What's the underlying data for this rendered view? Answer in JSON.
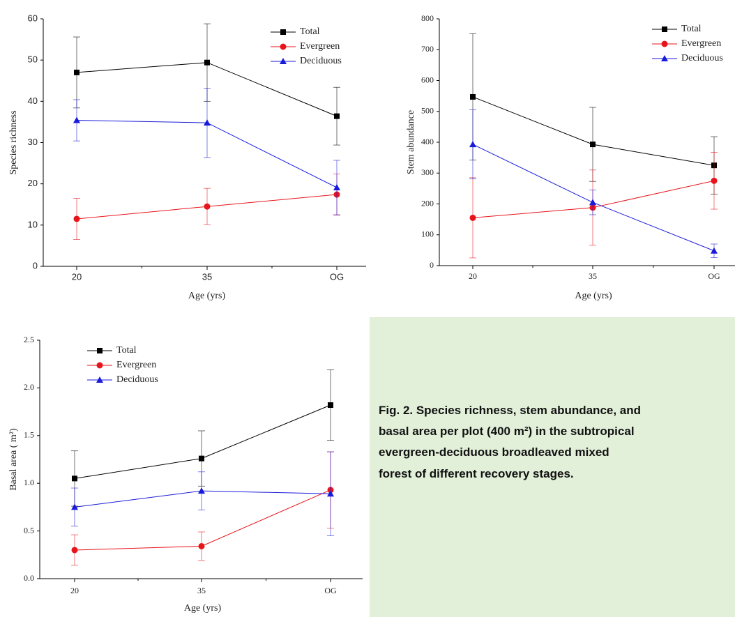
{
  "chart_data": [
    {
      "type": "line",
      "x_label": "Age (yrs)",
      "y_label": "Species richness",
      "categories": [
        "20",
        "35",
        "OG"
      ],
      "ylim": [
        0,
        60
      ],
      "yticks": [
        0,
        10,
        20,
        30,
        40,
        50,
        60
      ],
      "legend": "upper right",
      "series": [
        {
          "name": "Total",
          "color": "#000000",
          "marker": "square",
          "values": [
            47,
            49.4,
            36.4
          ],
          "errors": [
            8.6,
            9.4,
            7
          ]
        },
        {
          "name": "Evergreen",
          "color": "#e8141b",
          "marker": "circle",
          "values": [
            11.5,
            14.5,
            17.4
          ],
          "errors": [
            5,
            4.4,
            5
          ]
        },
        {
          "name": "Deciduous",
          "color": "#1a1adc",
          "marker": "triangle",
          "values": [
            35.4,
            34.8,
            19.1
          ],
          "errors": [
            5,
            8.4,
            6.6
          ]
        }
      ]
    },
    {
      "type": "line",
      "x_label": "Age (yrs)",
      "y_label": "Stem abundance",
      "categories": [
        "20",
        "35",
        "OG"
      ],
      "ylim": [
        0,
        800
      ],
      "yticks": [
        0,
        100,
        200,
        300,
        400,
        500,
        600,
        700,
        800
      ],
      "legend": "upper right",
      "series": [
        {
          "name": "Total",
          "color": "#000000",
          "marker": "square",
          "values": [
            547,
            393,
            325
          ],
          "errors": [
            205,
            120,
            93
          ]
        },
        {
          "name": "Evergreen",
          "color": "#e8141b",
          "marker": "circle",
          "values": [
            155,
            188,
            275
          ],
          "errors": [
            130,
            122,
            92
          ]
        },
        {
          "name": "Deciduous",
          "color": "#1a1adc",
          "marker": "triangle",
          "values": [
            393,
            205,
            48
          ],
          "errors": [
            112,
            40,
            22
          ]
        }
      ]
    },
    {
      "type": "line",
      "x_label": "Age (yrs)",
      "y_label": "Basal area ( m²)",
      "categories": [
        "20",
        "35",
        "OG"
      ],
      "ylim": [
        0,
        2.5
      ],
      "yticks": [
        {
          "value": 0,
          "label": "0.0"
        },
        0.5,
        {
          "value": 1,
          "label": "1.0"
        },
        1.5,
        {
          "value": 2,
          "label": "2.0"
        },
        2.5
      ],
      "legend": "upper left",
      "series": [
        {
          "name": "Total",
          "color": "#000000",
          "marker": "square",
          "values": [
            1.05,
            1.26,
            1.82
          ],
          "errors": [
            0.29,
            0.29,
            0.37
          ]
        },
        {
          "name": "Evergreen",
          "color": "#e8141b",
          "marker": "circle",
          "values": [
            0.3,
            0.34,
            0.93
          ],
          "errors": [
            0.16,
            0.15,
            0.4
          ]
        },
        {
          "name": "Deciduous",
          "color": "#1a1adc",
          "marker": "triangle",
          "values": [
            0.75,
            0.92,
            0.89
          ],
          "errors": [
            0.2,
            0.2,
            0.44
          ]
        }
      ]
    }
  ],
  "caption": [
    "Fig. 2. Species richness, stem abundance, and",
    "basal area per plot (400 m²) in the subtropical",
    "evergreen-deciduous broadleaved mixed",
    "forest of different recovery stages."
  ]
}
